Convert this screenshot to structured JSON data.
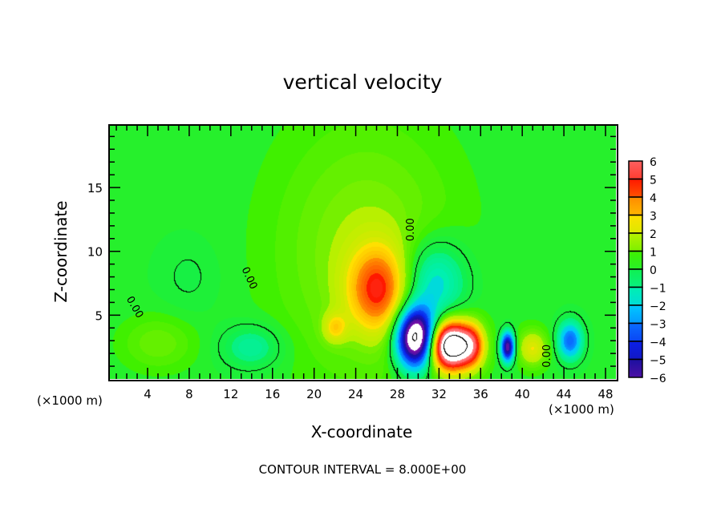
{
  "chart_data": {
    "type": "heatmap",
    "title": "vertical velocity",
    "xlabel": "X-coordinate",
    "ylabel": "Z-coordinate",
    "x_unit_label": "(×1000 m)",
    "footer": "CONTOUR INTERVAL = 8.000E+00",
    "xlim": [
      0.3,
      49
    ],
    "ylim": [
      0,
      19.9
    ],
    "xticks": [
      4,
      8,
      12,
      16,
      20,
      24,
      28,
      32,
      36,
      40,
      44,
      48
    ],
    "yticks": [
      5,
      10,
      15
    ],
    "colorbar": {
      "levels": [
        -6,
        -5,
        -4,
        -3,
        -2,
        -1,
        0,
        1,
        2,
        3,
        4,
        5,
        6
      ],
      "labels": [
        "6",
        "5",
        "4",
        "3",
        "2",
        "1",
        "0",
        "−1",
        "−2",
        "−3",
        "−4",
        "−5",
        "−6"
      ],
      "colors": [
        "#7a10a8",
        "#1c10a0",
        "#0a20e8",
        "#0a6cff",
        "#00c8ff",
        "#00f0b0",
        "#10f050",
        "#40f000",
        "#b8f000",
        "#ffe000",
        "#ff8c00",
        "#ff1800",
        "#ff6060",
        "#ffa0a0"
      ]
    },
    "contour_interval": 8,
    "contour_levels": [
      -8,
      0,
      8
    ],
    "contour_labels": [
      {
        "text": "0.00",
        "x": 2.5,
        "z": 5.5,
        "angle": 60
      },
      {
        "text": "0.00",
        "x": 13.5,
        "z": 7.8,
        "angle": 65
      },
      {
        "text": "0.00",
        "x": 29.6,
        "z": 11.7,
        "angle": -90
      },
      {
        "text": "0.00",
        "x": 42.7,
        "z": 1.8,
        "angle": -90
      }
    ],
    "field": {
      "background": 0.3,
      "features": [
        {
          "x": 25,
          "z": 10,
          "amp": 1.3,
          "sx": 6,
          "sz": 7
        },
        {
          "x": 26.2,
          "z": 7,
          "amp": 3.6,
          "sx": 2,
          "sz": 2.3
        },
        {
          "x": 22,
          "z": 4,
          "amp": 1.8,
          "sx": 0.8,
          "sz": 0.8
        },
        {
          "x": 31.5,
          "z": 7.5,
          "amp": -2.6,
          "sx": 2.2,
          "sz": 2.3
        },
        {
          "x": 29.8,
          "z": 3.2,
          "amp": -9.5,
          "sx": 1.3,
          "sz": 1.6
        },
        {
          "x": 33.2,
          "z": 2.6,
          "amp": 9.5,
          "sx": 1.5,
          "sz": 1.3
        },
        {
          "x": 35.3,
          "z": 2.6,
          "amp": 2.5,
          "sx": 0.8,
          "sz": 1.2
        },
        {
          "x": 38.6,
          "z": 2.5,
          "amp": -6.5,
          "sx": 0.45,
          "sz": 0.8
        },
        {
          "x": 41,
          "z": 2.4,
          "amp": 2.2,
          "sx": 1,
          "sz": 1
        },
        {
          "x": 44.6,
          "z": 3,
          "amp": -3.8,
          "sx": 0.8,
          "sz": 1
        },
        {
          "x": 14,
          "z": 2.5,
          "amp": -1.4,
          "sx": 2,
          "sz": 1.2
        },
        {
          "x": 5,
          "z": 2.8,
          "amp": 0.9,
          "sx": 2.5,
          "sz": 1.5
        },
        {
          "x": 8,
          "z": 8,
          "amp": -0.4,
          "sx": 2,
          "sz": 2
        }
      ]
    }
  }
}
